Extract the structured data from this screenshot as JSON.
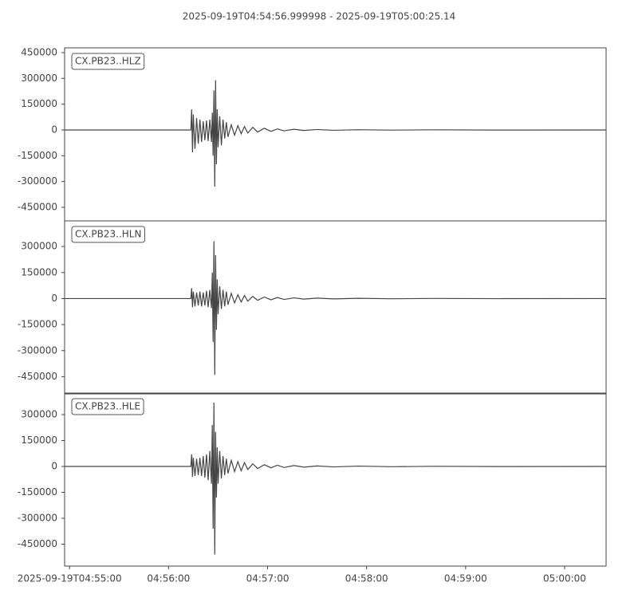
{
  "chart_data": {
    "type": "line",
    "title": "2025-09-19T04:54:56.999998  -  2025-09-19T05:00:25.14",
    "color": "#454545",
    "xlim": [
      -3.0,
      325.14
    ],
    "xticks": [
      {
        "value": 0,
        "label": "2025-09-19T04:55:00"
      },
      {
        "value": 60,
        "label": "04:56:00"
      },
      {
        "value": 120,
        "label": "04:57:00"
      },
      {
        "value": 180,
        "label": "04:58:00"
      },
      {
        "value": 240,
        "label": "04:59:00"
      },
      {
        "value": 300,
        "label": "05:00:00"
      }
    ],
    "x": [
      -3,
      73.5,
      74,
      74.5,
      75,
      76,
      77,
      78,
      79,
      80,
      81,
      82,
      83,
      84,
      85,
      86,
      86.5,
      87,
      87.5,
      88,
      88.5,
      89,
      89.5,
      90,
      91,
      92,
      93,
      94,
      95,
      96,
      98,
      100,
      102,
      104,
      106,
      108,
      111,
      114,
      118,
      122,
      126,
      130,
      136,
      142,
      150,
      160,
      175,
      195,
      220,
      260,
      325
    ],
    "panels": [
      {
        "label": "CX.PB23..HLZ",
        "ylim": [
          477800,
          -528900
        ],
        "yticks": [
          450000,
          300000,
          150000,
          0,
          -150000,
          -300000,
          -450000
        ],
        "values": [
          0,
          0,
          120000,
          -130000,
          90000,
          -110000,
          70000,
          -80000,
          60000,
          -70000,
          50000,
          -60000,
          55000,
          -65000,
          60000,
          -70000,
          100000,
          -150000,
          230000,
          -330000,
          290000,
          -200000,
          120000,
          -100000,
          80000,
          -90000,
          60000,
          -50000,
          45000,
          -40000,
          30000,
          -30000,
          25000,
          -22000,
          20000,
          -18000,
          15000,
          -12000,
          10000,
          -8000,
          6000,
          -5000,
          4000,
          -3000,
          2500,
          -2000,
          1500,
          -1000,
          800,
          -500,
          0
        ]
      },
      {
        "label": "CX.PB23..HLN",
        "ylim": [
          447700,
          -549200
        ],
        "yticks": [
          300000,
          150000,
          0,
          -150000,
          -300000,
          -450000
        ],
        "values": [
          0,
          0,
          60000,
          -50000,
          40000,
          -45000,
          35000,
          -40000,
          40000,
          -45000,
          35000,
          -40000,
          45000,
          -50000,
          50000,
          -55000,
          150000,
          -250000,
          330000,
          -440000,
          250000,
          -180000,
          110000,
          -90000,
          70000,
          -60000,
          50000,
          -45000,
          40000,
          -35000,
          30000,
          -25000,
          22000,
          -20000,
          18000,
          -15000,
          12000,
          -10000,
          9000,
          -7000,
          6000,
          -5000,
          4000,
          -3000,
          2500,
          -2000,
          1500,
          -1000,
          700,
          -400,
          0
        ]
      },
      {
        "label": "CX.PB23..HLE",
        "ylim": [
          424600,
          -576900
        ],
        "yticks": [
          300000,
          150000,
          0,
          -150000,
          -300000,
          -450000
        ],
        "values": [
          0,
          0,
          70000,
          -60000,
          50000,
          -55000,
          45000,
          -50000,
          50000,
          -55000,
          60000,
          -65000,
          70000,
          -80000,
          90000,
          -100000,
          240000,
          -360000,
          370000,
          -510000,
          200000,
          -180000,
          110000,
          -100000,
          90000,
          -70000,
          60000,
          -50000,
          45000,
          -40000,
          35000,
          -30000,
          28000,
          -25000,
          22000,
          -18000,
          15000,
          -12000,
          10000,
          -8000,
          7000,
          -6000,
          5000,
          -4000,
          3000,
          -2500,
          2000,
          -1500,
          800,
          -500,
          0
        ]
      }
    ]
  }
}
